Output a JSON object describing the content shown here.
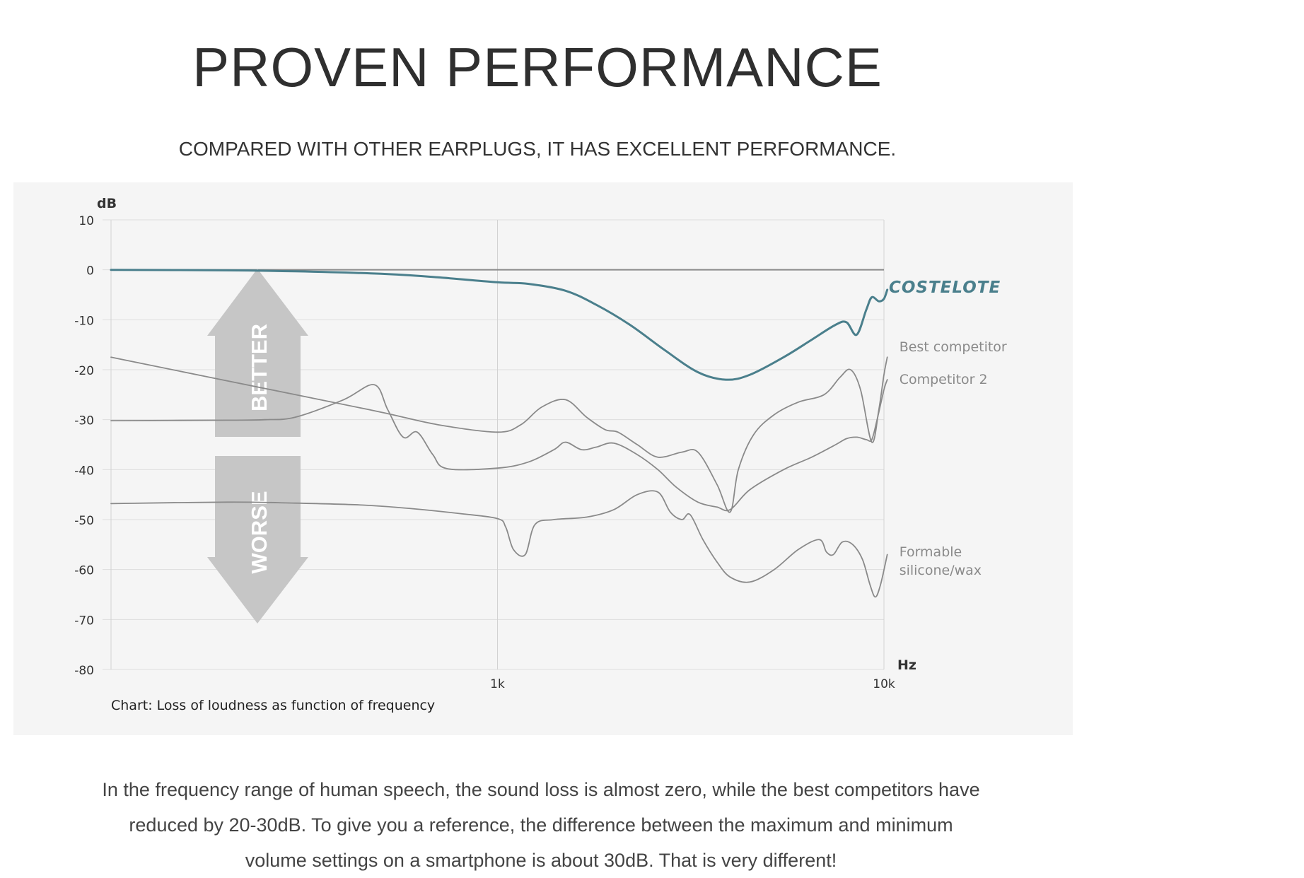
{
  "header": {
    "title": "PROVEN PERFORMANCE",
    "subtitle": "COMPARED WITH OTHER EARPLUGS, IT HAS EXCELLENT PERFORMANCE."
  },
  "chart_data": {
    "type": "line",
    "ylabel": "dB",
    "xlabel": "Hz",
    "note": "Chart: Loss of loudness as function of frequency",
    "x_scale": "log",
    "xlim": [
      100,
      10000
    ],
    "ylim": [
      -80,
      10
    ],
    "yticks": [
      10,
      0,
      -10,
      -20,
      -30,
      -40,
      -50,
      -60,
      -70,
      -80
    ],
    "ytick_labels": [
      "10",
      "0",
      "-10",
      "-20",
      "-30",
      "-40",
      "-50",
      "-60",
      "-70",
      "-80"
    ],
    "xticks": [
      1000,
      10000
    ],
    "xtick_labels": [
      "1k",
      "10k"
    ],
    "grid": true,
    "reference_line": 0,
    "arrows": {
      "better": "BETTER",
      "worse": "WORSE"
    },
    "series": [
      {
        "name": "COSTELOTE",
        "color": "#4a7f8c",
        "points": [
          [
            100,
            0
          ],
          [
            200,
            -0.1
          ],
          [
            300,
            -0.3
          ],
          [
            500,
            -0.8
          ],
          [
            700,
            -1.5
          ],
          [
            1000,
            -2.5
          ],
          [
            1200,
            -2.8
          ],
          [
            1500,
            -4.2
          ],
          [
            1800,
            -7
          ],
          [
            2200,
            -11
          ],
          [
            2700,
            -16
          ],
          [
            3300,
            -20.5
          ],
          [
            3900,
            -22
          ],
          [
            4500,
            -21
          ],
          [
            5500,
            -17.5
          ],
          [
            6500,
            -14
          ],
          [
            7500,
            -11
          ],
          [
            8000,
            -10.5
          ],
          [
            8500,
            -13
          ],
          [
            9000,
            -8
          ],
          [
            9300,
            -5.5
          ],
          [
            9700,
            -6.3
          ],
          [
            10000,
            -5.8
          ],
          [
            10200,
            -4
          ]
        ]
      },
      {
        "name": "Best competitor",
        "color": "#8a8a8a",
        "points": [
          [
            100,
            -30.2
          ],
          [
            200,
            -30.1
          ],
          [
            250,
            -30
          ],
          [
            300,
            -29.5
          ],
          [
            400,
            -26
          ],
          [
            480,
            -23
          ],
          [
            520,
            -28
          ],
          [
            570,
            -33.5
          ],
          [
            620,
            -32.5
          ],
          [
            680,
            -37
          ],
          [
            740,
            -39.8
          ],
          [
            1000,
            -39.7
          ],
          [
            1200,
            -38.5
          ],
          [
            1400,
            -36
          ],
          [
            1500,
            -34.5
          ],
          [
            1650,
            -36
          ],
          [
            1800,
            -35.5
          ],
          [
            2000,
            -34.7
          ],
          [
            2300,
            -37
          ],
          [
            2600,
            -40
          ],
          [
            2900,
            -43.5
          ],
          [
            3300,
            -46.5
          ],
          [
            3700,
            -47.5
          ],
          [
            4000,
            -48
          ],
          [
            4500,
            -44
          ],
          [
            5500,
            -40
          ],
          [
            6500,
            -37.5
          ],
          [
            7500,
            -35
          ],
          [
            8000,
            -33.8
          ],
          [
            8500,
            -33.5
          ],
          [
            9000,
            -34
          ],
          [
            9300,
            -34
          ],
          [
            9600,
            -30
          ],
          [
            10000,
            -24
          ],
          [
            10200,
            -22
          ]
        ]
      },
      {
        "name": "Competitor 2",
        "color": "#8a8a8a",
        "points": [
          [
            100,
            -17.5
          ],
          [
            300,
            -25
          ],
          [
            500,
            -28.5
          ],
          [
            700,
            -31
          ],
          [
            1000,
            -32.5
          ],
          [
            1150,
            -31
          ],
          [
            1300,
            -27.5
          ],
          [
            1500,
            -26
          ],
          [
            1700,
            -29.5
          ],
          [
            1900,
            -32
          ],
          [
            2050,
            -32.5
          ],
          [
            2300,
            -35
          ],
          [
            2600,
            -37.5
          ],
          [
            3000,
            -36.5
          ],
          [
            3300,
            -36.5
          ],
          [
            3700,
            -43
          ],
          [
            4000,
            -48.5
          ],
          [
            4200,
            -40
          ],
          [
            4600,
            -33
          ],
          [
            5200,
            -29
          ],
          [
            6000,
            -26.5
          ],
          [
            7000,
            -25
          ],
          [
            7700,
            -21.5
          ],
          [
            8200,
            -20
          ],
          [
            8700,
            -24
          ],
          [
            9300,
            -34.5
          ],
          [
            9700,
            -28
          ],
          [
            10000,
            -21
          ],
          [
            10200,
            -17.5
          ]
        ]
      },
      {
        "name": "Formable silicone/wax",
        "color": "#8a8a8a",
        "points": [
          [
            100,
            -46.8
          ],
          [
            200,
            -46.5
          ],
          [
            300,
            -46.7
          ],
          [
            450,
            -47.1
          ],
          [
            600,
            -47.8
          ],
          [
            800,
            -48.8
          ],
          [
            1000,
            -49.8
          ],
          [
            1050,
            -51.5
          ],
          [
            1100,
            -56
          ],
          [
            1180,
            -57
          ],
          [
            1250,
            -51
          ],
          [
            1400,
            -50
          ],
          [
            1700,
            -49.5
          ],
          [
            2000,
            -48
          ],
          [
            2300,
            -45
          ],
          [
            2600,
            -44.5
          ],
          [
            2800,
            -48.5
          ],
          [
            3000,
            -50
          ],
          [
            3150,
            -49
          ],
          [
            3400,
            -54
          ],
          [
            3700,
            -58.5
          ],
          [
            4000,
            -61.5
          ],
          [
            4500,
            -62.5
          ],
          [
            5200,
            -60
          ],
          [
            6000,
            -56
          ],
          [
            6800,
            -54
          ],
          [
            7100,
            -56.5
          ],
          [
            7400,
            -57
          ],
          [
            7800,
            -54.5
          ],
          [
            8300,
            -55
          ],
          [
            8800,
            -58
          ],
          [
            9200,
            -63
          ],
          [
            9500,
            -65.5
          ],
          [
            9800,
            -63
          ],
          [
            10200,
            -57
          ]
        ]
      }
    ]
  },
  "brand": {
    "logo_text": "COSTELOTE"
  },
  "caption": {
    "line1": "In the frequency range of human speech, the sound loss is almost zero, while the best competitors have",
    "line2": "reduced by 20-30dB. To give you a reference, the difference between the maximum and minimum",
    "line3": "volume settings on a smartphone is about 30dB. That is very different!"
  }
}
